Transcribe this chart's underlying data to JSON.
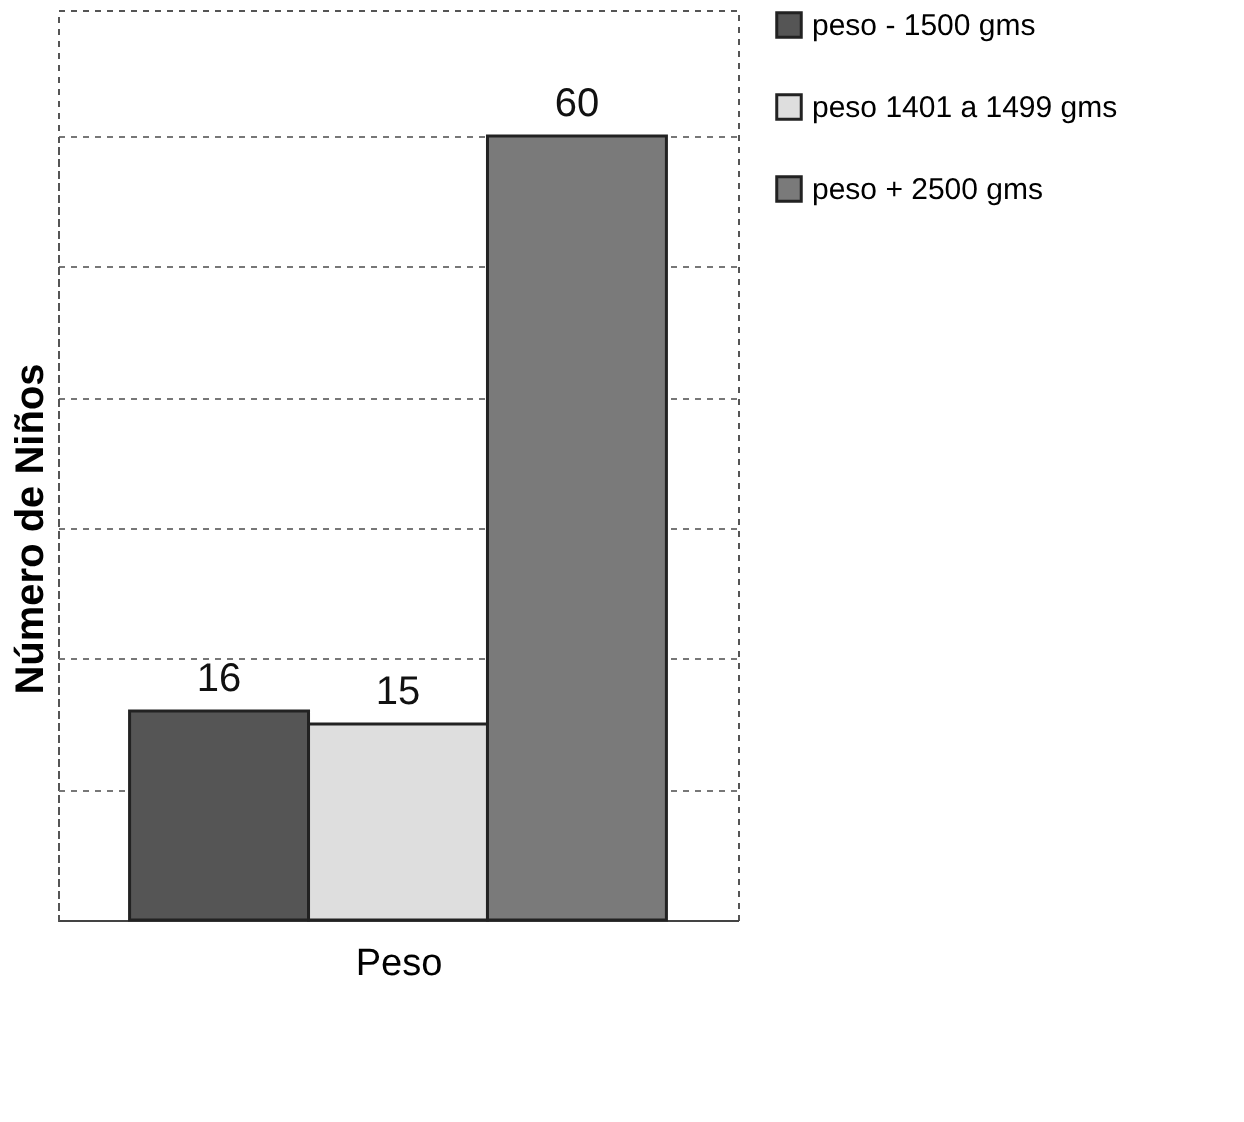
{
  "chart_data": {
    "type": "bar",
    "ylabel": "Número de Niños",
    "xlabel": "Peso",
    "categories": [
      null,
      null,
      null
    ],
    "series": [
      {
        "name": "peso - 1500 gms",
        "color": "#555555",
        "values": [
          16,
          null,
          null
        ]
      },
      {
        "name": "peso 1401 a 1499 gms",
        "color": "#dedede",
        "values": [
          null,
          15,
          null
        ]
      },
      {
        "name": "peso + 2500 gms",
        "color": "#7a7a7a",
        "values": [
          null,
          null,
          60
        ]
      }
    ],
    "stacked": true,
    "tick_labels": false,
    "grid": "y",
    "legend": "right",
    "data_labels": true
  }
}
